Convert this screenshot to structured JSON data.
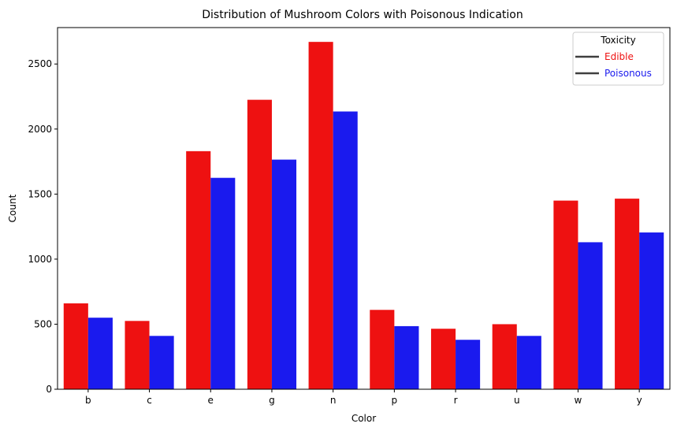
{
  "chart_data": {
    "type": "bar",
    "title": "Distribution of Mushroom Colors with Poisonous Indication",
    "xlabel": "Color",
    "ylabel": "Count",
    "categories": [
      "b",
      "c",
      "e",
      "g",
      "n",
      "p",
      "r",
      "u",
      "w",
      "y"
    ],
    "series": [
      {
        "name": "Edible",
        "color": "#ee1111",
        "values": [
          660,
          525,
          1830,
          2225,
          2670,
          610,
          465,
          500,
          1450,
          1465
        ]
      },
      {
        "name": "Poisonous",
        "color": "#1a1aee",
        "values": [
          550,
          410,
          1625,
          1765,
          2135,
          485,
          380,
          410,
          1130,
          1205
        ]
      }
    ],
    "ylim": [
      0,
      2780
    ],
    "yticks": [
      0,
      500,
      1000,
      1500,
      2000,
      2500
    ],
    "grid": false,
    "legend": {
      "title": "Toxicity",
      "position": "top-right",
      "line_color": "#3f3f3f"
    }
  }
}
